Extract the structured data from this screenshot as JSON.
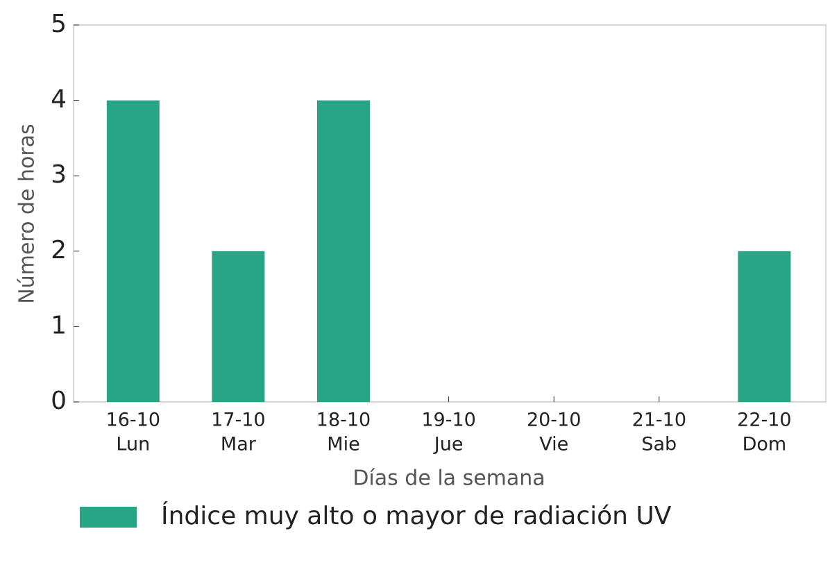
{
  "chart_data": {
    "type": "bar",
    "categories": [
      [
        "16-10",
        "Lun"
      ],
      [
        "17-10",
        "Mar"
      ],
      [
        "18-10",
        "Mie"
      ],
      [
        "19-10",
        "Jue"
      ],
      [
        "20-10",
        "Vie"
      ],
      [
        "21-10",
        "Sab"
      ],
      [
        "22-10",
        "Dom"
      ]
    ],
    "series": [
      {
        "name": "Índice muy alto o mayor de radiación UV",
        "color": "#27a585",
        "values": [
          4,
          2,
          4,
          0,
          0,
          0,
          2
        ]
      }
    ],
    "x_label": "Días de la semana",
    "y_label": "Número de horas",
    "ylim": [
      0,
      5
    ],
    "yticks": [
      0,
      1,
      2,
      3,
      4,
      5
    ],
    "grid": false,
    "legend": "bottom"
  }
}
